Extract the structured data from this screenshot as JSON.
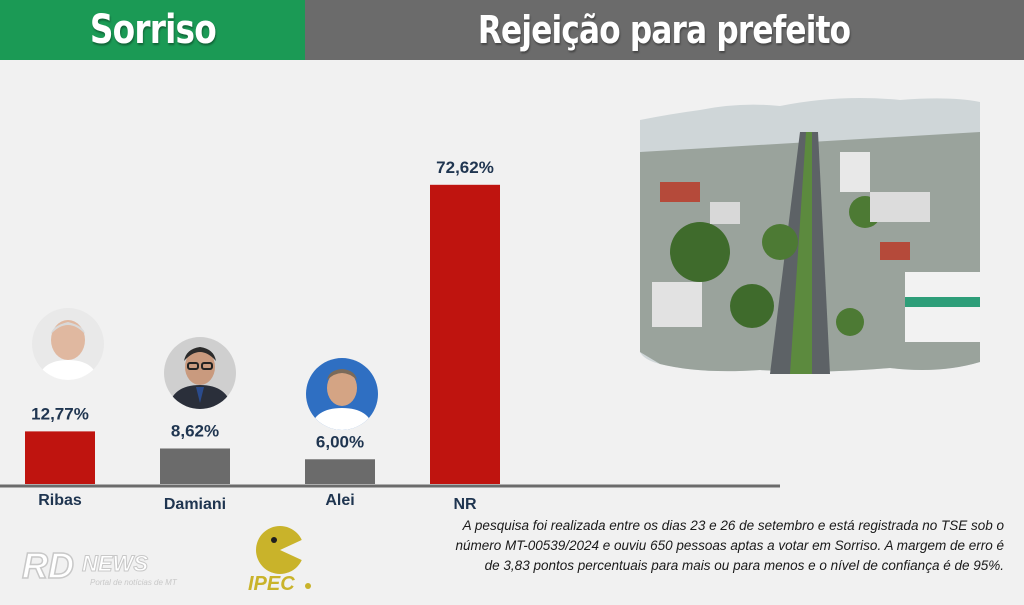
{
  "header": {
    "city": "Sorriso",
    "title": "Rejeição para prefeito"
  },
  "chart_data": {
    "type": "bar",
    "categories": [
      "Ribas",
      "Damiani",
      "Alei",
      "NR"
    ],
    "values": [
      12.77,
      8.62,
      6.0,
      72.62
    ],
    "value_labels": [
      "12,77%",
      "8,62%",
      "6,00%",
      "72,62%"
    ],
    "colors": [
      "#bf140f",
      "#6b6b6b",
      "#6b6b6b",
      "#bf140f"
    ],
    "title": "",
    "xlabel": "",
    "ylabel": "",
    "grid": false,
    "legend": "none"
  },
  "avatars": [
    {
      "name": "Ribas",
      "icon": "candidate-photo"
    },
    {
      "name": "Damiani",
      "icon": "candidate-photo"
    },
    {
      "name": "Alei",
      "icon": "candidate-photo"
    }
  ],
  "note": "A pesquisa foi realizada entre os dias 23 e 26 de setembro e está registrada no TSE sob o número MT-00539/2024 e ouviu 650 pessoas aptas a votar em Sorriso. A margem de erro é de 3,83 pontos percentuais para mais ou para menos e o nível de confiança é de 95%.",
  "logos": {
    "rdnews": "RD NEWS",
    "rdnews_tagline": "Portal de notícias de MT",
    "ipec": "IPEC"
  }
}
